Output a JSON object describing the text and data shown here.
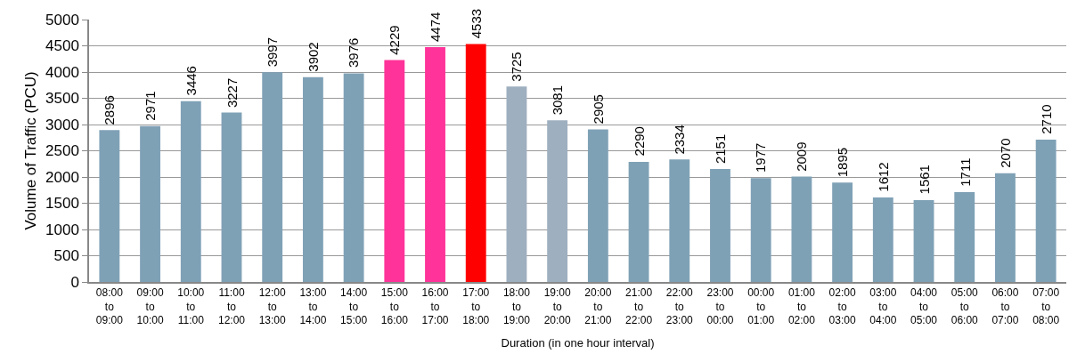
{
  "chart_data": {
    "type": "bar",
    "xlabel": "Duration (in one hour interval)",
    "ylabel": "Volume of Traffic (PCU)",
    "categories": [
      "08:00\nto\n09:00",
      "09:00\nto\n10:00",
      "10:00\nto\n11:00",
      "11:00\nto\n12:00",
      "12:00\nto\n13:00",
      "13:00\nto\n14:00",
      "14:00\nto\n15:00",
      "15:00\nto\n16:00",
      "16:00\nto\n17:00",
      "17:00\nto\n18:00",
      "18:00\nto\n19:00",
      "19:00\nto\n20:00",
      "20:00\nto\n21:00",
      "21:00\nto\n22:00",
      "22:00\nto\n23:00",
      "23:00\nto\n00:00",
      "00:00\nto\n01:00",
      "01:00\nto\n02:00",
      "02:00\nto\n03:00",
      "03:00\nto\n04:00",
      "04:00\nto\n05:00",
      "05:00\nto\n06:00",
      "06:00\nto\n07:00",
      "07:00\nto\n08:00"
    ],
    "values": [
      2896,
      2971,
      3446,
      3227,
      3997,
      3902,
      3976,
      4229,
      4474,
      4533,
      3725,
      3081,
      2905,
      2290,
      2334,
      2151,
      1977,
      2009,
      1895,
      1612,
      1561,
      1711,
      2070,
      2710
    ],
    "colors": [
      "#7fa1b6",
      "#7fa1b6",
      "#7fa1b6",
      "#7fa1b6",
      "#7fa1b6",
      "#7fa1b6",
      "#7fa1b6",
      "#ff3399",
      "#ff3399",
      "#ff0000",
      "#9eafbf",
      "#9eafbf",
      "#7fa1b6",
      "#7fa1b6",
      "#7fa1b6",
      "#7fa1b6",
      "#7fa1b6",
      "#7fa1b6",
      "#7fa1b6",
      "#7fa1b6",
      "#7fa1b6",
      "#7fa1b6",
      "#7fa1b6",
      "#7fa1b6"
    ],
    "ylim": [
      0,
      5000
    ],
    "yticks": [
      0,
      500,
      1000,
      1500,
      2000,
      2500,
      3000,
      3500,
      4000,
      4500,
      5000
    ],
    "grid": "y",
    "data_labels": true
  }
}
